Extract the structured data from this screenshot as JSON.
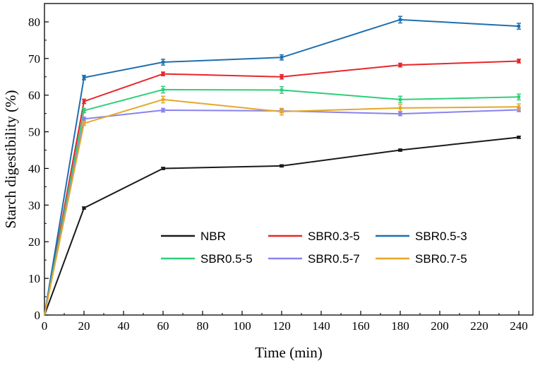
{
  "chart_data": {
    "type": "line",
    "title": "",
    "xlabel": "Time (min)",
    "ylabel": "Starch digestibility (%)",
    "xlim": [
      0,
      250
    ],
    "ylim": [
      0,
      85
    ],
    "xticks": [
      0,
      20,
      40,
      60,
      80,
      100,
      120,
      140,
      160,
      180,
      200,
      220,
      240
    ],
    "yticks": [
      0,
      10,
      20,
      30,
      40,
      50,
      60,
      70,
      80
    ],
    "x": [
      0,
      20,
      60,
      120,
      180,
      240
    ],
    "grid": false,
    "legend_position": "bottom-right",
    "series": [
      {
        "name": "NBR",
        "color": "#1a1a1a",
        "values": [
          0,
          29.2,
          40.0,
          40.7,
          45.0,
          48.5
        ],
        "errors": [
          0,
          0.3,
          0.3,
          0.3,
          0.3,
          0.3
        ]
      },
      {
        "name": "SBR0.3-5",
        "color": "#e8262b",
        "values": [
          0,
          58.3,
          65.8,
          65.0,
          68.2,
          69.3
        ],
        "errors": [
          0,
          0.6,
          0.5,
          0.6,
          0.5,
          0.5
        ]
      },
      {
        "name": "SBR0.5-3",
        "color": "#1f6fae",
        "values": [
          0,
          64.8,
          69.0,
          70.3,
          80.6,
          78.8
        ],
        "errors": [
          0,
          0.6,
          0.8,
          0.7,
          0.9,
          0.8
        ]
      },
      {
        "name": "SBR0.5-5",
        "color": "#2ecf7a",
        "values": [
          0,
          55.8,
          61.5,
          61.4,
          58.8,
          59.5
        ],
        "errors": [
          0,
          0.6,
          0.9,
          0.9,
          0.9,
          0.8
        ]
      },
      {
        "name": "SBR0.5-7",
        "color": "#8a82f0",
        "values": [
          0,
          53.5,
          55.9,
          55.7,
          54.9,
          56.0
        ],
        "errors": [
          0,
          0.5,
          0.5,
          0.5,
          0.5,
          0.5
        ]
      },
      {
        "name": "SBR0.7-5",
        "color": "#e5a82a",
        "values": [
          0,
          52.3,
          58.8,
          55.5,
          56.5,
          56.8
        ],
        "errors": [
          0,
          0.6,
          0.9,
          0.9,
          0.9,
          0.8
        ]
      }
    ]
  }
}
